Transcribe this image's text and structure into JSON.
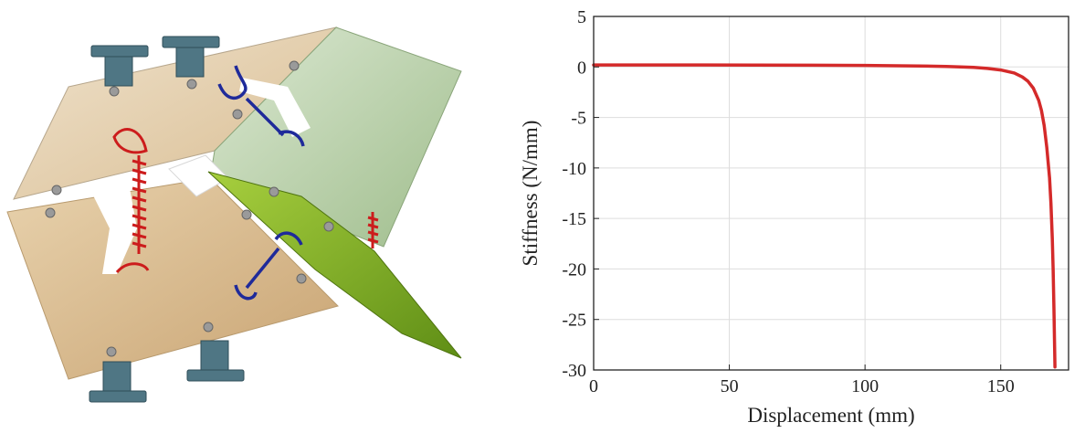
{
  "figure": {
    "left_panel": {
      "components": [
        "upper-left-panel",
        "lower-left-panel",
        "upper-right-panel",
        "lower-right-flap",
        "red-tension-spring",
        "blue-compression-spring",
        "mounting-bracket"
      ]
    }
  },
  "chart_data": {
    "type": "line",
    "title": "",
    "xlabel": "Displacement (mm)",
    "ylabel": "Stiffness (N/mm)",
    "xlim": [
      0,
      175
    ],
    "ylim": [
      -30,
      5
    ],
    "xticks": [
      0,
      50,
      100,
      150
    ],
    "yticks": [
      5,
      0,
      -5,
      -10,
      -15,
      -20,
      -25,
      -30
    ],
    "grid": true,
    "legend": "none",
    "series": [
      {
        "color": "#d42a2a",
        "x": [
          0,
          20,
          40,
          60,
          80,
          100,
          120,
          130,
          140,
          145,
          150,
          155,
          158,
          160,
          162,
          164,
          165,
          166,
          167,
          168,
          168.5,
          169,
          169.3,
          169.6,
          170
        ],
        "y": [
          0.2,
          0.2,
          0.2,
          0.18,
          0.17,
          0.15,
          0.1,
          0.05,
          -0.05,
          -0.15,
          -0.3,
          -0.6,
          -1.0,
          -1.4,
          -2.1,
          -3.3,
          -4.3,
          -5.8,
          -8.0,
          -11.0,
          -13.5,
          -17.0,
          -20.0,
          -24.0,
          -29.7
        ]
      }
    ]
  }
}
